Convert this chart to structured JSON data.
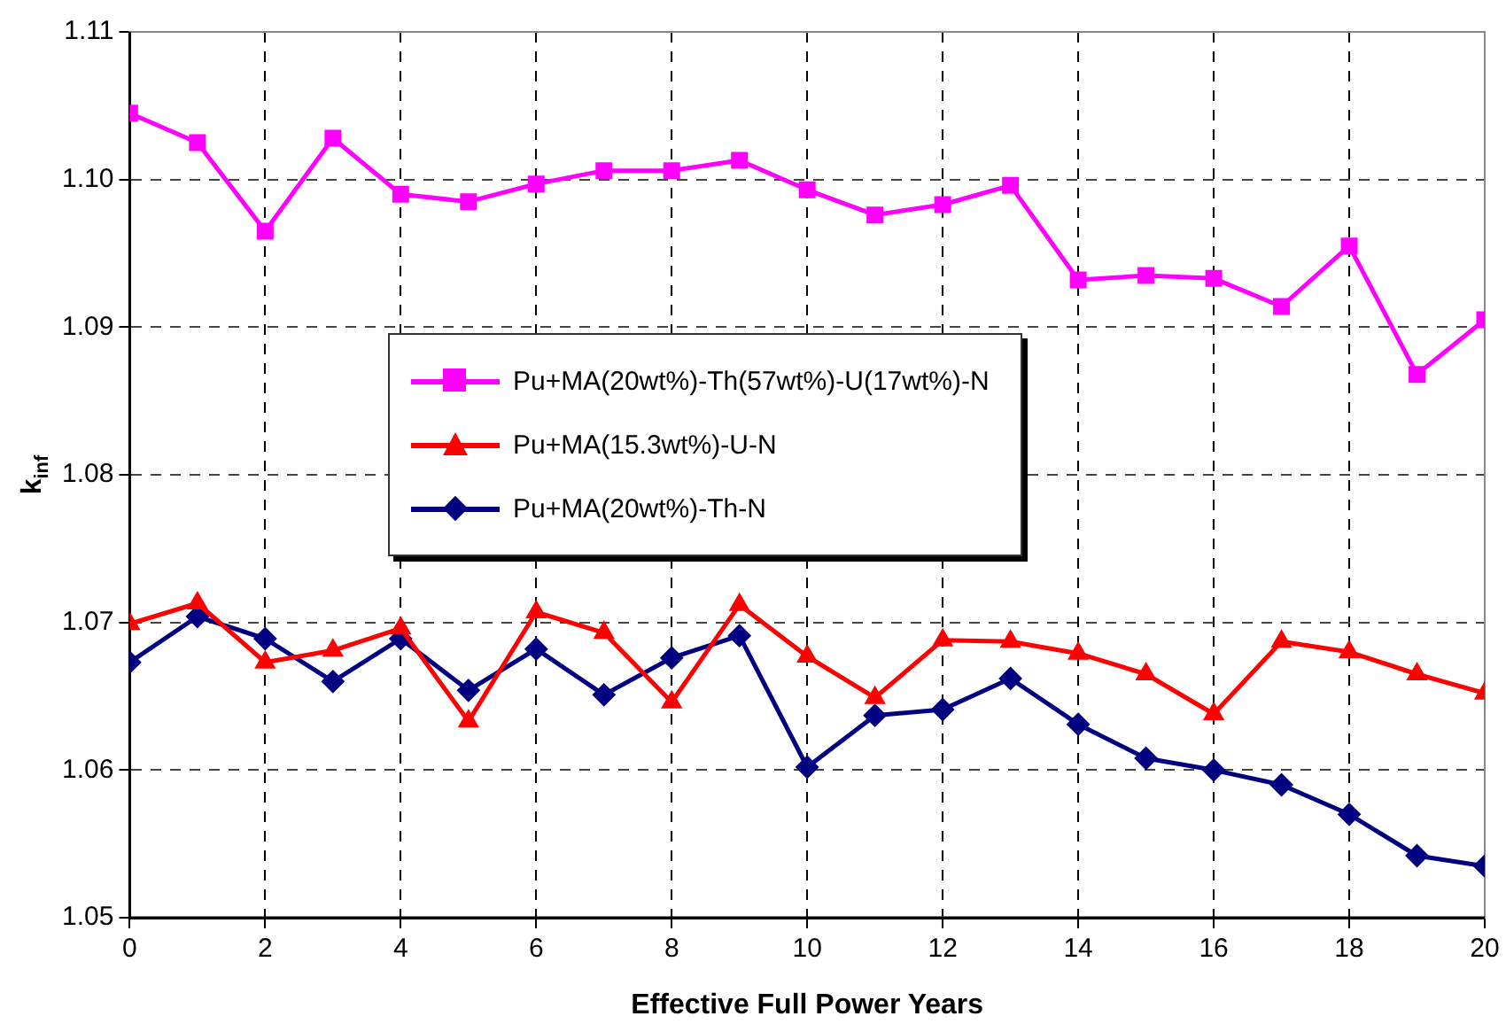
{
  "chart_data": {
    "type": "line",
    "xlabel": "Effective Full Power Years",
    "ylabel": "k$_{inf}$",
    "x": [
      0,
      1,
      2,
      3,
      4,
      5,
      6,
      7,
      8,
      9,
      10,
      11,
      12,
      13,
      14,
      15,
      16,
      17,
      18,
      19,
      20
    ],
    "xlim": [
      0,
      20
    ],
    "xticks": [
      0,
      2,
      4,
      6,
      8,
      10,
      12,
      14,
      16,
      18,
      20
    ],
    "ylim": [
      1.05,
      1.11
    ],
    "yticks": [
      1.05,
      1.06,
      1.07,
      1.08,
      1.09,
      {
        "value": 1.1,
        "label": "1.10"
      },
      1.11
    ],
    "grid": true,
    "legend": "center",
    "line_style": "solid",
    "series": [
      {
        "name": "Pu+MA(20wt%)-Th(57wt%)-U(17wt%)-N",
        "color": "#ff00ff",
        "marker": "square",
        "values": [
          1.1045,
          1.1025,
          1.0965,
          1.1028,
          1.099,
          1.0985,
          1.0997,
          1.1006,
          1.1006,
          1.1013,
          1.0993,
          1.0976,
          1.0983,
          1.0996,
          1.0932,
          1.0935,
          1.0933,
          1.0914,
          1.0955,
          1.0868,
          1.0905
        ]
      },
      {
        "name": "Pu+MA(15.3wt%)-U-N",
        "color": "#ff0000",
        "marker": "triangle",
        "values": [
          1.0699,
          1.0713,
          1.0673,
          1.0681,
          1.0696,
          1.0633,
          1.0707,
          1.0693,
          1.0646,
          1.0712,
          1.0677,
          1.0649,
          1.0688,
          1.0687,
          1.0679,
          1.0665,
          1.0638,
          1.0687,
          1.068,
          1.0665,
          1.0652
        ]
      },
      {
        "name": "Pu+MA(20wt%)-Th-N",
        "color": "#000080",
        "marker": "diamond",
        "values": [
          1.0673,
          1.0704,
          1.0689,
          1.066,
          1.0689,
          1.0654,
          1.0682,
          1.0651,
          1.0676,
          1.0691,
          1.0602,
          1.0637,
          1.0641,
          1.0662,
          1.0631,
          1.0608,
          1.06,
          1.059,
          1.057,
          1.0542,
          1.0535
        ]
      }
    ]
  }
}
